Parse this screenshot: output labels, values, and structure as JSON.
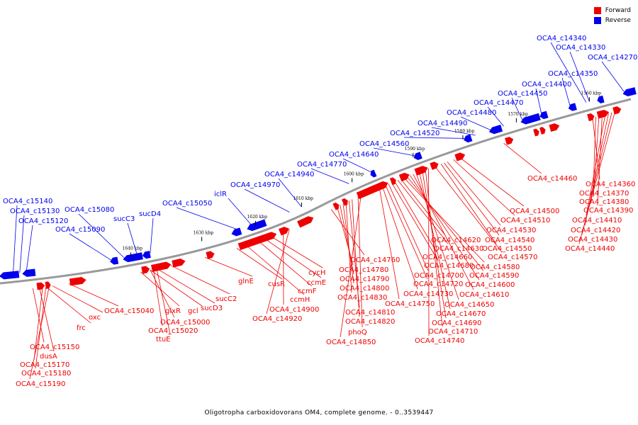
{
  "colors": {
    "forward": "#ee0000",
    "reverse": "#0000ee",
    "backbone": "#999999"
  },
  "legend": {
    "forward": "Forward",
    "reverse": "Reverse"
  },
  "caption": "Oligotropha carboxidovorans OM4, complete genome. - 0..3539447",
  "axis_ticks": [
    "1560 kbp",
    "1570 kbp",
    "1580 kbp",
    "1590 kbp",
    "1600 kbp",
    "1610 kbp",
    "1620 kbp",
    "1630 kbp",
    "1640 kbp"
  ],
  "reverse_labels": [
    "OCA4_c14340",
    "OCA4_c14330",
    "OCA4_c14270",
    "OCA4_c14350",
    "OCA4_c14400",
    "OCA4_c14450",
    "OCA4_c14470",
    "OCA4_c14480",
    "OCA4_c14490",
    "OCA4_c14520",
    "OCA4_c14560",
    "OCA4_c14640",
    "OCA4_c14770",
    "OCA4_c14940",
    "OCA4_c14970",
    "iclR",
    "OCA4_c15050",
    "sucD4",
    "sucC3",
    "OCA4_c15080",
    "OCA4_c15090",
    "OCA4_c15140",
    "OCA4_c15130",
    "OCA4_c15120"
  ],
  "forward_labels": [
    "OCA4_c15040",
    "glxR",
    "gcl",
    "sucD3",
    "sucC2",
    "glnE",
    "cusR",
    "ccmH",
    "ccmF",
    "ccmE",
    "cycH",
    "OCA4_c14760",
    "OCA4_c14780",
    "OCA4_c14790",
    "OCA4_c14800",
    "OCA4_c14830",
    "OCA4_c14810",
    "OCA4_c14820",
    "phoQ",
    "OCA4_c14850",
    "OCA4_c14900",
    "OCA4_c14920",
    "OCA4_c15000",
    "OCA4_c15020",
    "ttuE",
    "frc",
    "oxc",
    "OCA4_c15150",
    "dusA",
    "OCA4_c15170",
    "OCA4_c15180",
    "OCA4_c15190",
    "OCA4_c14750",
    "OCA4_c14730",
    "OCA4_c14720",
    "OCA4_c14700",
    "OCA4_c14680",
    "OCA4_c14660",
    "OCA4_c14630",
    "OCA4_c14620",
    "OCA4_c14580",
    "OCA4_c14590",
    "OCA4_c14600",
    "OCA4_c14610",
    "OCA4_c14650",
    "OCA4_c14670",
    "OCA4_c14690",
    "OCA4_c14710",
    "OCA4_c14740",
    "OCA4_c14570",
    "OCA4_c14550",
    "OCA4_c14540",
    "OCA4_c14530",
    "OCA4_c14510",
    "OCA4_c14500",
    "OCA4_c14460",
    "OCA4_c14360",
    "OCA4_c14370",
    "OCA4_c14380",
    "OCA4_c14390",
    "OCA4_c14410",
    "OCA4_c14420",
    "OCA4_c14430",
    "OCA4_c14440"
  ]
}
